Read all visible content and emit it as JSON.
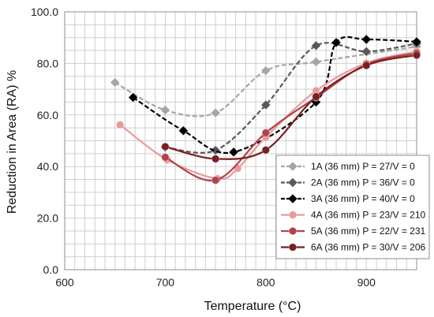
{
  "chart_data": {
    "type": "line",
    "xlabel": "Temperature (°C)",
    "ylabel": "Reduction in Area (RA) %",
    "xlim": [
      600,
      950
    ],
    "ylim": [
      0,
      100
    ],
    "x_ticks": [
      "600",
      "700",
      "800",
      "900"
    ],
    "y_ticks": [
      "0.0",
      "20.0",
      "40.0",
      "60.0",
      "80.0",
      "100.0"
    ],
    "x_tick_values": [
      600,
      700,
      800,
      900
    ],
    "y_tick_values": [
      0,
      20,
      40,
      60,
      80,
      100
    ],
    "grid": true,
    "legend_position": "bottom-right",
    "series": [
      {
        "name": "1A (36 mm) P = 27/V = 0",
        "color": "#a6a6a6",
        "dash": "dashed",
        "marker": "diamond",
        "x": [
          650,
          700,
          750,
          800,
          850,
          950
        ],
        "y": [
          72.6,
          61.9,
          60.8,
          77.2,
          80.6,
          86.5
        ]
      },
      {
        "name": "2A (36 mm) P = 36/V = 0",
        "color": "#595959",
        "dash": "dashed",
        "marker": "diamond",
        "x": [
          700,
          750,
          800,
          850,
          900,
          950
        ],
        "y": [
          47.5,
          46.3,
          63.9,
          86.9,
          84.6,
          87.7
        ]
      },
      {
        "name": "3A (36 mm) P = 40/V = 0",
        "color": "#000000",
        "dash": "dashed",
        "marker": "diamond",
        "x": [
          668,
          718,
          768,
          850,
          870,
          900,
          950
        ],
        "y": [
          66.8,
          53.9,
          45.6,
          65.0,
          88.1,
          89.3,
          88.4
        ]
      },
      {
        "name": "4A (36 mm) P = 23/V = 210",
        "color": "#e8999a",
        "dash": "solid",
        "marker": "circle",
        "x": [
          655,
          702,
          752,
          772,
          800,
          850,
          900,
          950
        ],
        "y": [
          56.2,
          42.6,
          35.3,
          39.3,
          51.4,
          69.4,
          80.1,
          84.6
        ]
      },
      {
        "name": "5A (36 mm) P = 22/V = 231",
        "color": "#b3434a",
        "dash": "solid",
        "marker": "circle",
        "x": [
          700,
          750,
          800,
          850,
          900,
          950
        ],
        "y": [
          43.6,
          34.7,
          53.1,
          66.8,
          79.6,
          84.0
        ]
      },
      {
        "name": "6A (36 mm) P = 30/V = 206",
        "color": "#7a1f22",
        "dash": "solid",
        "marker": "circle",
        "x": [
          700,
          750,
          800,
          850,
          900,
          950
        ],
        "y": [
          47.7,
          43.0,
          46.4,
          67.1,
          79.2,
          83.2
        ]
      }
    ]
  }
}
